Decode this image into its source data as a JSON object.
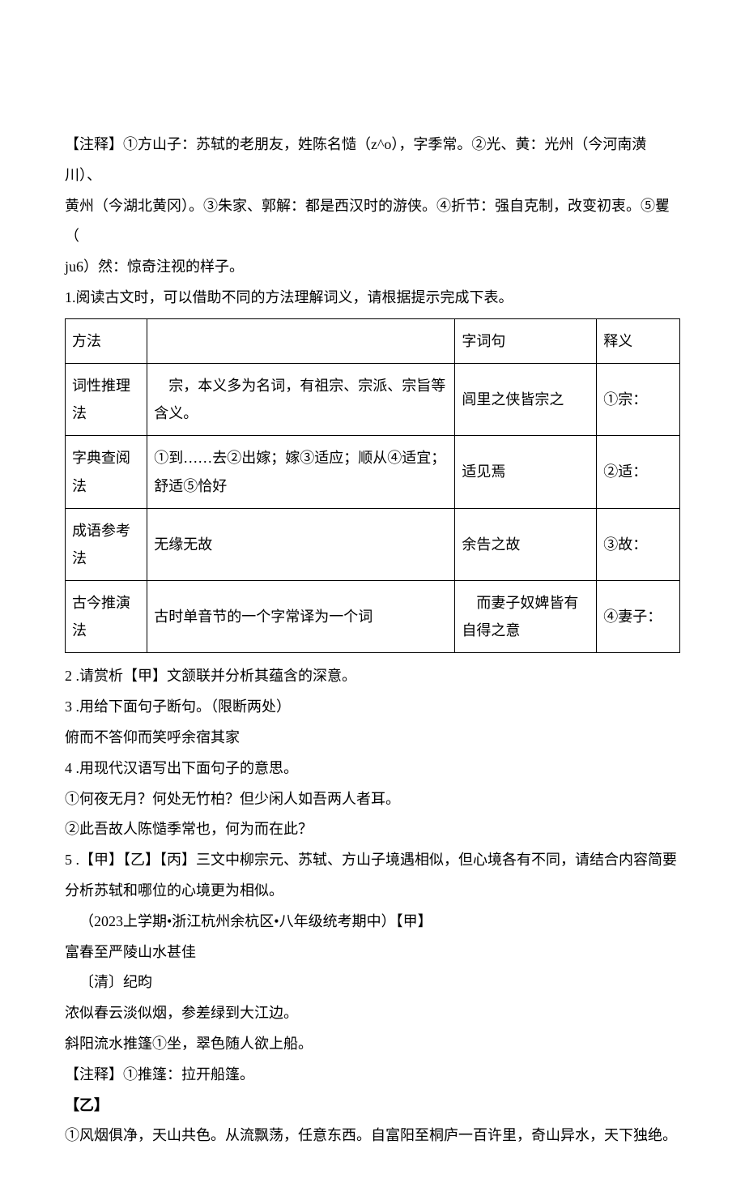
{
  "notes": {
    "line1": "【注释】①方山子：苏轼的老朋友，姓陈名慥（z^o），字季常。②光、黄：光州（今河南潢川）、",
    "line2": "黄州（今湖北黄冈）。③朱家、郭解：都是西汉时的游侠。④折节：强自克制，改变初衷。⑤矍（",
    "line3": "ju6）然：惊奇注视的样子。"
  },
  "q1_intro": "1.阅读古文时，可以借助不同的方法理解词义，请根据提示完成下表。",
  "table": {
    "header": {
      "c1": "方法",
      "c2": "",
      "c3": "字词句",
      "c4": "释义"
    },
    "rows": [
      {
        "c1": "词性推理法",
        "c2": "　宗，本义多为名词，有祖宗、宗派、宗旨等含义。",
        "c3": "闾里之侠皆宗之",
        "c4": "①宗："
      },
      {
        "c1": "字典查阅法",
        "c2": "①到……去②出嫁；嫁③适应；顺从④适宜；舒适⑤恰好",
        "c3": "适见焉",
        "c4": "②适："
      },
      {
        "c1": "成语参考法",
        "c2": "无缘无故",
        "c3": "余告之故",
        "c4": "③故："
      },
      {
        "c1": "古今推演法",
        "c2": "古时单音节的一个字常译为一个词",
        "c3": "　而妻子奴婢皆有自得之意",
        "c4": "④妻子："
      }
    ]
  },
  "q2": "2 .请赏析【甲】文颔联并分析其蕴含的深意。",
  "q3": "3 .用给下面句子断句。（限断两处）",
  "q3_line": "俯而不答仰而笑呼余宿其家",
  "q4": "4 .用现代汉语写出下面句子的意思。",
  "q4_1": "①何夜无月？何处无竹柏？但少闲人如吾两人者耳。",
  "q4_2": "②此吾故人陈慥季常也，何为而在此？",
  "q5a": "5 .【甲】【乙】【丙】三文中柳宗元、苏轼、方山子境遇相似，但心境各有不同，请结合内容简要",
  "q5b": "分析苏轼和哪位的心境更为相似。",
  "src": "（2023上学期•浙江杭州余杭区•八年级统考期中）【甲】",
  "poem_title": "富春至严陵山水甚佳",
  "poem_author": "〔清〕纪昀",
  "poem_l1": "浓似春云淡似烟，参差绿到大江边。",
  "poem_l2": "斜阳流水推篷①坐，翠色随人欲上船。",
  "poem_note": "【注释】①推篷：拉开船篷。",
  "yi_label": "【乙】",
  "yi_text": "①风烟俱净，天山共色。从流飘荡，任意东西。自富阳至桐庐一百许里，奇山异水，天下独绝。"
}
